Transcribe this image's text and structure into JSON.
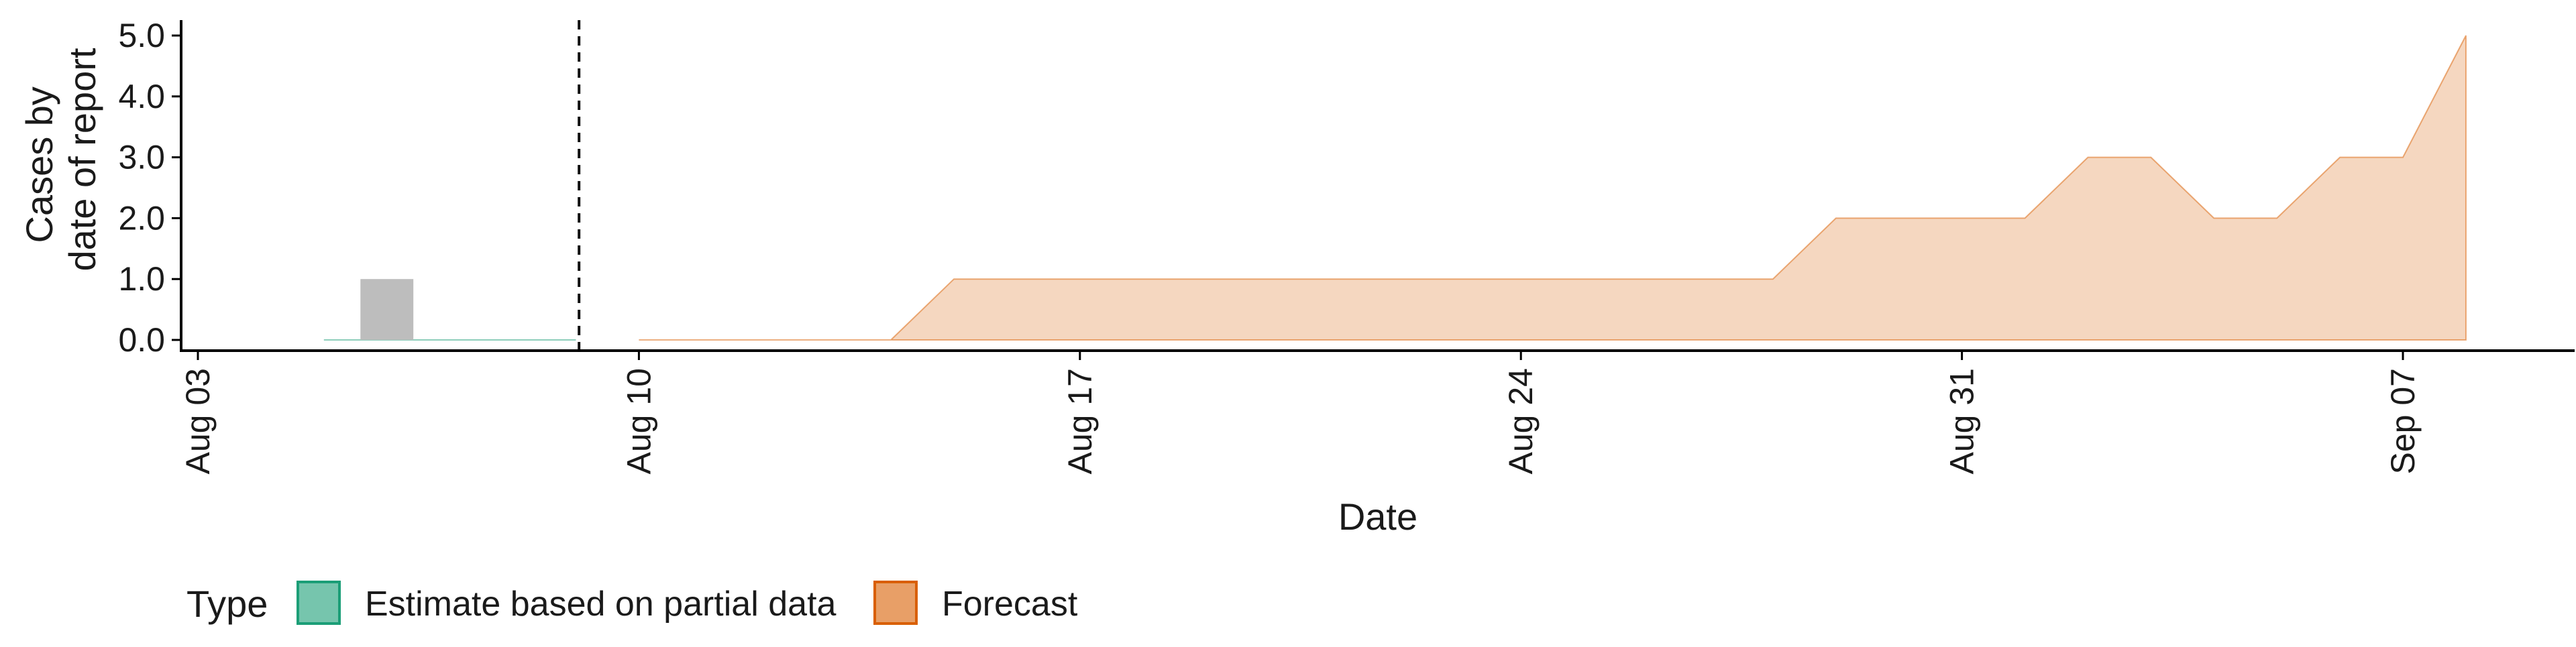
{
  "chart_data": {
    "type": "area",
    "title": "",
    "xlabel": "Date",
    "ylabel_lines": [
      "Cases by",
      "date of report"
    ],
    "x_range": [
      "2020-08-03",
      "2020-09-09"
    ],
    "ylim": [
      0,
      5.0
    ],
    "x_ticks": [
      {
        "date": "2020-08-03",
        "label": "Aug 03"
      },
      {
        "date": "2020-08-10",
        "label": "Aug 10"
      },
      {
        "date": "2020-08-17",
        "label": "Aug 17"
      },
      {
        "date": "2020-08-24",
        "label": "Aug 24"
      },
      {
        "date": "2020-08-31",
        "label": "Aug 31"
      },
      {
        "date": "2020-09-07",
        "label": "Sep 07"
      }
    ],
    "y_ticks": [
      {
        "value": 0.0,
        "label": "0.0"
      },
      {
        "value": 1.0,
        "label": "1.0"
      },
      {
        "value": 2.0,
        "label": "2.0"
      },
      {
        "value": 3.0,
        "label": "3.0"
      },
      {
        "value": 4.0,
        "label": "4.0"
      },
      {
        "value": 5.0,
        "label": "5.0"
      }
    ],
    "grid": false,
    "legend_position": "bottom-left",
    "legend_title": "Type",
    "observed_bars": {
      "color": "#bdbdbd",
      "points": [
        {
          "x": "2020-08-06",
          "y": 1.0
        }
      ]
    },
    "forecast_cutoff": "2020-08-09",
    "series": [
      {
        "name": "Estimate based on partial data",
        "color": "#1b9e77",
        "fill_opacity": 0.6,
        "points": [
          {
            "x": "2020-08-05",
            "y": 0.0
          },
          {
            "x": "2020-08-06",
            "y": 0.0
          },
          {
            "x": "2020-08-07",
            "y": 0.0
          },
          {
            "x": "2020-08-08",
            "y": 0.0
          },
          {
            "x": "2020-08-09",
            "y": 0.0
          }
        ]
      },
      {
        "name": "Forecast",
        "color": "#d95f02",
        "fill_opacity": 0.25,
        "points": [
          {
            "x": "2020-08-10",
            "y": 0
          },
          {
            "x": "2020-08-11",
            "y": 0
          },
          {
            "x": "2020-08-12",
            "y": 0
          },
          {
            "x": "2020-08-13",
            "y": 0
          },
          {
            "x": "2020-08-14",
            "y": 0
          },
          {
            "x": "2020-08-15",
            "y": 1
          },
          {
            "x": "2020-08-16",
            "y": 1
          },
          {
            "x": "2020-08-17",
            "y": 1
          },
          {
            "x": "2020-08-18",
            "y": 1
          },
          {
            "x": "2020-08-19",
            "y": 1
          },
          {
            "x": "2020-08-20",
            "y": 1
          },
          {
            "x": "2020-08-21",
            "y": 1
          },
          {
            "x": "2020-08-22",
            "y": 1
          },
          {
            "x": "2020-08-23",
            "y": 1
          },
          {
            "x": "2020-08-24",
            "y": 1
          },
          {
            "x": "2020-08-25",
            "y": 1
          },
          {
            "x": "2020-08-26",
            "y": 1
          },
          {
            "x": "2020-08-27",
            "y": 1
          },
          {
            "x": "2020-08-28",
            "y": 1
          },
          {
            "x": "2020-08-29",
            "y": 2
          },
          {
            "x": "2020-08-30",
            "y": 2
          },
          {
            "x": "2020-08-31",
            "y": 2
          },
          {
            "x": "2020-09-01",
            "y": 2
          },
          {
            "x": "2020-09-02",
            "y": 3
          },
          {
            "x": "2020-09-03",
            "y": 3
          },
          {
            "x": "2020-09-04",
            "y": 2
          },
          {
            "x": "2020-09-05",
            "y": 2
          },
          {
            "x": "2020-09-06",
            "y": 3
          },
          {
            "x": "2020-09-07",
            "y": 3
          },
          {
            "x": "2020-09-08",
            "y": 5
          }
        ]
      }
    ]
  }
}
